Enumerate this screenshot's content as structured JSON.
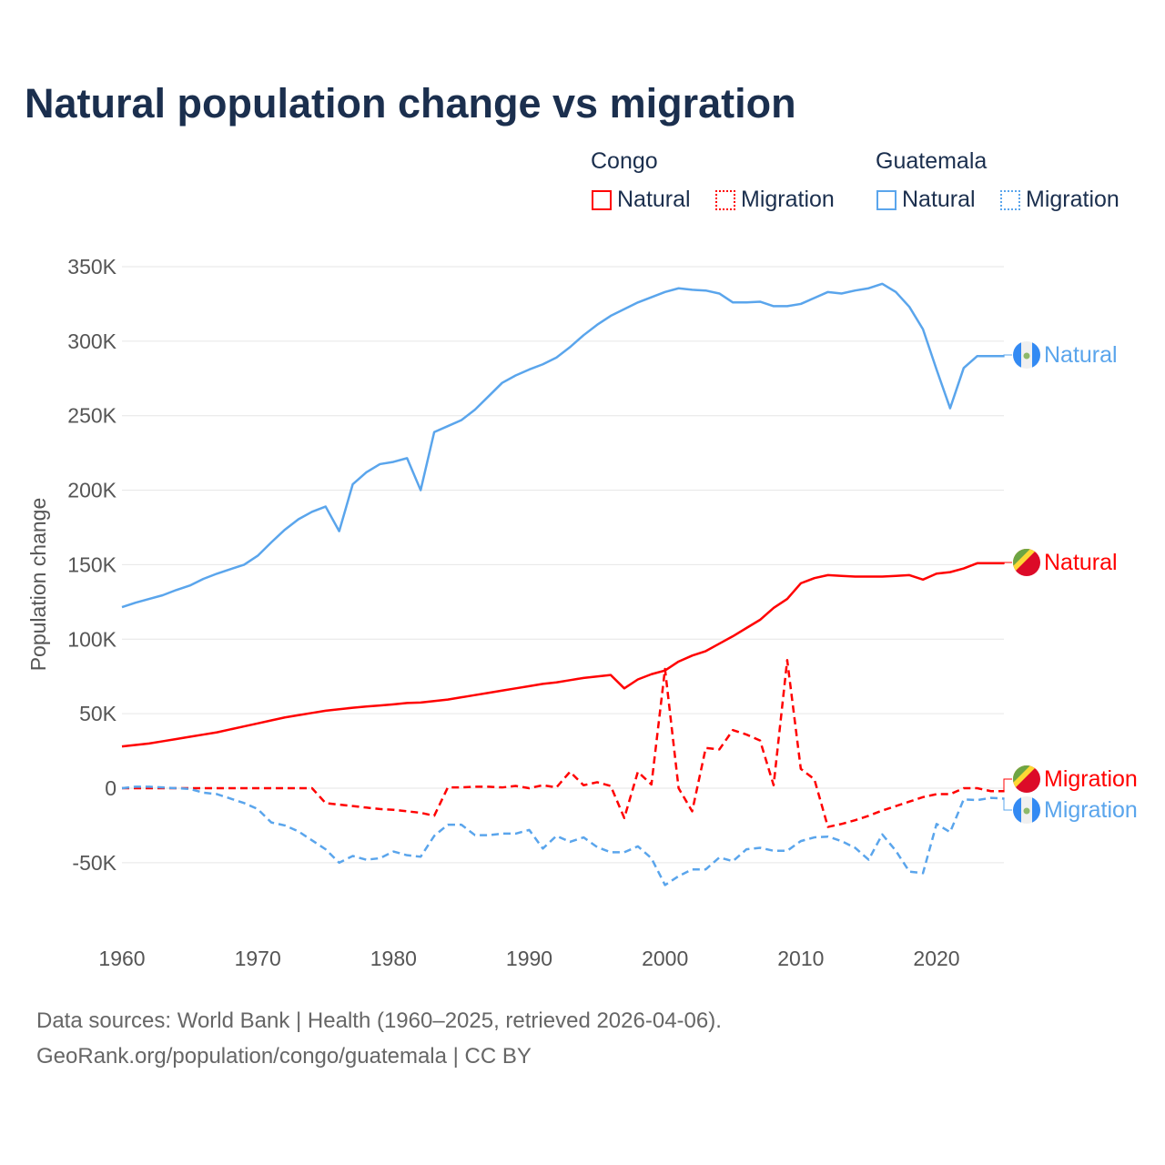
{
  "title": "Natural population change vs migration",
  "legend": {
    "groups": [
      {
        "name": "Congo",
        "items": [
          "Natural",
          "Migration"
        ]
      },
      {
        "name": "Guatemala",
        "items": [
          "Natural",
          "Migration"
        ]
      }
    ]
  },
  "footer": {
    "line1": "Data sources: World Bank | Health (1960–2025, retrieved 2026-04-06).",
    "line2": "GeoRank.org/population/congo/guatemala | CC BY"
  },
  "colors": {
    "congo": "#ff0000",
    "guatemala": "#5aa5ec",
    "title": "#1b2f4e"
  },
  "chart_data": {
    "type": "line",
    "title": "Natural population change vs migration",
    "xlabel": "",
    "ylabel": "Population change",
    "xlim": [
      1960,
      2025
    ],
    "ylim": [
      -75000,
      370000
    ],
    "x_ticks": [
      1960,
      1970,
      1980,
      1990,
      2000,
      2010,
      2020
    ],
    "x_tick_labels": [
      "1960",
      "1970",
      "1980",
      "1990",
      "2000",
      "2010",
      "2020"
    ],
    "y_ticks": [
      -50000,
      0,
      50000,
      100000,
      150000,
      200000,
      250000,
      300000,
      350000
    ],
    "y_tick_labels": [
      "-50K",
      "0",
      "50K",
      "100K",
      "150K",
      "200K",
      "250K",
      "300K",
      "350K"
    ],
    "grid": true,
    "legend_position": "top-right",
    "x_start": 1960,
    "series": [
      {
        "name": "Guatemala Natural",
        "end_label": "Natural",
        "country": "guatemala",
        "dashed": false,
        "values_k": [
          121.5,
          124.5,
          127,
          129.5,
          133,
          136,
          140.5,
          144,
          147,
          150,
          156,
          165,
          173.5,
          180.5,
          185.5,
          189,
          172.5,
          204,
          212,
          217.5,
          219,
          221.5,
          200,
          239,
          243,
          247,
          254,
          263,
          272,
          277,
          281,
          284.5,
          289,
          296,
          304,
          311,
          317,
          321.5,
          326,
          329.5,
          333,
          335.5,
          334.5,
          334,
          332,
          326,
          326,
          326.5,
          323.5,
          323.5,
          325,
          329,
          333,
          332,
          334,
          335.5,
          338.5,
          333,
          323,
          308,
          281,
          255,
          282,
          290,
          290,
          290
        ]
      },
      {
        "name": "Congo Natural",
        "end_label": "Natural",
        "country": "congo",
        "dashed": false,
        "values_k": [
          28,
          29,
          30,
          31.5,
          33,
          34.5,
          36,
          37.5,
          39.5,
          41.5,
          43.5,
          45.5,
          47.5,
          49,
          50.5,
          52,
          53,
          54,
          54.8,
          55.5,
          56.3,
          57.2,
          57.5,
          58.5,
          59.5,
          61,
          62.5,
          64,
          65.5,
          67,
          68.5,
          70,
          71,
          72.5,
          74,
          75,
          76,
          67,
          73,
          76.5,
          79,
          85,
          89,
          92,
          97,
          102,
          107.5,
          113,
          121,
          127,
          137.5,
          141,
          143,
          142.5,
          142,
          142,
          142,
          142.5,
          143,
          140,
          144,
          145,
          147.5,
          151,
          151,
          151
        ]
      },
      {
        "name": "Congo Migration",
        "end_label": "Migration",
        "country": "congo",
        "dashed": true,
        "values_k": [
          0,
          0,
          0,
          0,
          0,
          0,
          0,
          0,
          0,
          0,
          0,
          0,
          0,
          0,
          0,
          -10,
          -11,
          -12,
          -13,
          -14,
          -14.5,
          -15.5,
          -16.5,
          -18.5,
          0.5,
          0.5,
          1,
          1,
          0.5,
          1.5,
          0,
          2,
          0.5,
          11,
          2,
          4,
          1.5,
          -20,
          11,
          2.5,
          80,
          0,
          -15.5,
          27,
          26,
          39,
          36,
          32,
          2,
          86,
          13,
          6,
          -26,
          -24,
          -21.5,
          -18.5,
          -15,
          -12,
          -9,
          -6,
          -4,
          -4,
          0,
          0,
          -2,
          -2
        ]
      },
      {
        "name": "Guatemala Migration",
        "end_label": "Migration",
        "country": "guatemala",
        "dashed": true,
        "values_k": [
          0,
          1,
          1,
          0.5,
          0,
          -0.5,
          -3,
          -4,
          -7,
          -10,
          -14,
          -23,
          -25,
          -29,
          -35,
          -41,
          -50,
          -45.5,
          -48,
          -47,
          -42.5,
          -45,
          -46,
          -32,
          -24.5,
          -24.5,
          -31.5,
          -31.5,
          -30.5,
          -30.5,
          -28,
          -40.5,
          -32,
          -36,
          -33,
          -39.5,
          -43,
          -43,
          -39,
          -47,
          -65,
          -59,
          -54.5,
          -54.5,
          -46.5,
          -49,
          -41,
          -40,
          -42,
          -42,
          -35.5,
          -33,
          -32.5,
          -35.5,
          -40,
          -48,
          -31,
          -42,
          -56,
          -57,
          -24,
          -29.5,
          -7.5,
          -8,
          -6.5,
          -7
        ]
      }
    ]
  }
}
